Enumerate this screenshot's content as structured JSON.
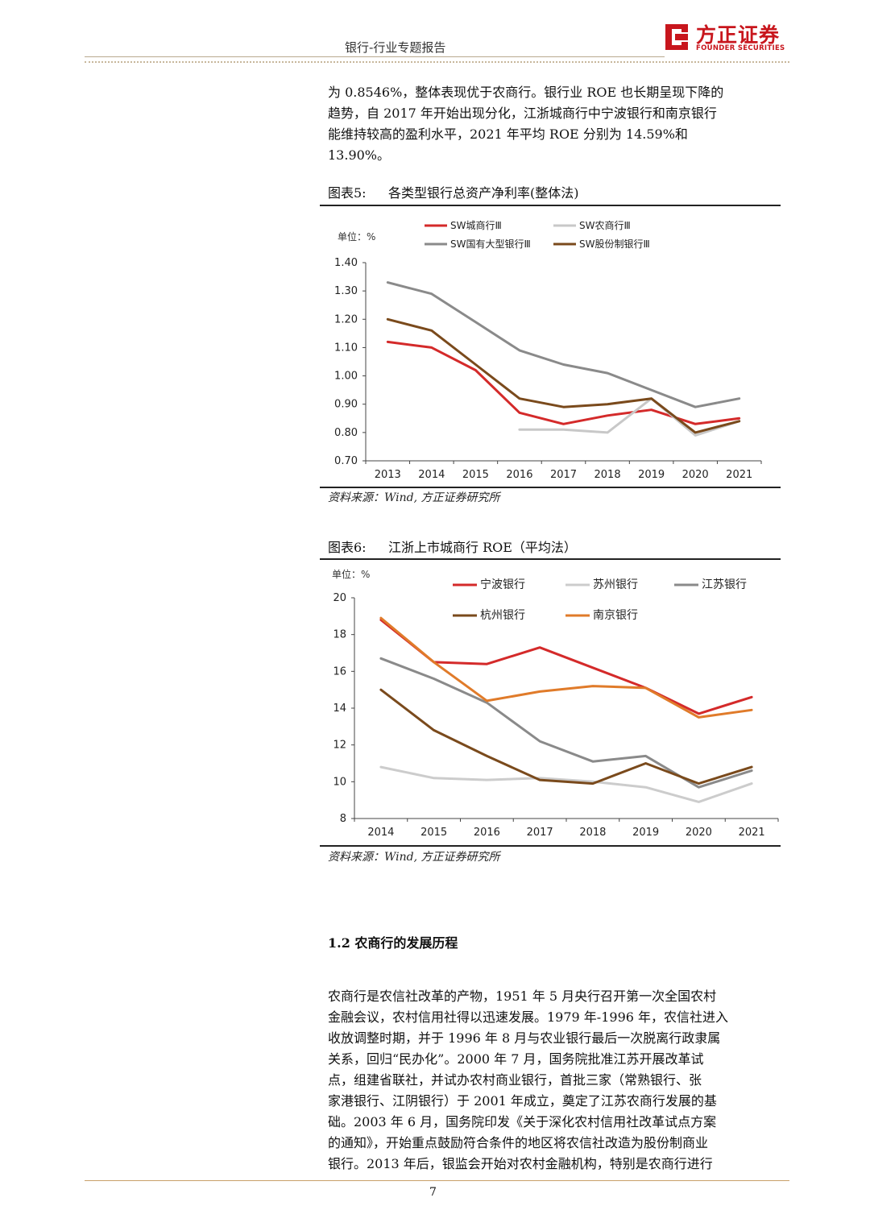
{
  "header": {
    "title": "银行-行业专题报告",
    "logo_text": "方正证券",
    "logo_sub": "FOUNDER SECURITIES",
    "logo_color": "#c8161d"
  },
  "body": {
    "para1": "为 0.8546%，整体表现优于农商行。银行业 ROE 也长期呈现下降的\n趋势，自 2017 年开始出现分化，江浙城商行中宁波银行和南京银行\n能维持较高的盈利水平，2021 年平均 ROE 分别为 14.59%和\n13.90%。",
    "section_title": "1.2 农商行的发展历程",
    "para2": "农商行是农信社改革的产物，1951 年 5 月央行召开第一次全国农村\n金融会议，农村信用社得以迅速发展。1979 年-1996 年，农信社进入\n收放调整时期，并于 1996 年 8 月与农业银行最后一次脱离行政隶属\n关系，回归“民办化”。2000 年 7 月，国务院批准江苏开展改革试\n点，组建省联社，并试办农村商业银行，首批三家（常熟银行、张\n家港银行、江阴银行）于 2001 年成立，奠定了江苏农商行发展的基\n础。2003 年 6 月，国务院印发《关于深化农村信用社改革试点方案\n的通知》，开始重点鼓励符合条件的地区将农信社改造为股份制商业\n银行。2013 年后，银监会开始对农村金融机构，特别是农商行进行"
  },
  "figure5": {
    "label": "图表5:",
    "title": "各类型银行总资产净利率(整体法)",
    "source": "资料来源：Wind, 方正证券研究所"
  },
  "figure6": {
    "label": "图表6:",
    "title": "江浙上市城商行 ROE（平均法）",
    "source": "资料来源：Wind, 方正证券研究所"
  },
  "footer": {
    "page_number": "7"
  },
  "chart_data": [
    {
      "type": "line",
      "unit_label": "单位：%",
      "x": [
        "2013",
        "2014",
        "2015",
        "2016",
        "2017",
        "2018",
        "2019",
        "2020",
        "2021"
      ],
      "ylim": [
        0.7,
        1.4
      ],
      "yticks": [
        "0.70",
        "0.80",
        "0.90",
        "1.00",
        "1.10",
        "1.20",
        "1.30",
        "1.40"
      ],
      "legend_position": "top",
      "series": [
        {
          "name": "SW城商行Ⅲ",
          "color": "#d42a2a",
          "values": [
            1.12,
            1.1,
            1.02,
            0.87,
            0.83,
            0.86,
            0.88,
            0.83,
            0.85
          ]
        },
        {
          "name": "SW农商行Ⅲ",
          "color": "#c8c8c8",
          "values": [
            null,
            null,
            null,
            0.81,
            0.81,
            0.8,
            0.92,
            0.79,
            0.84
          ]
        },
        {
          "name": "SW国有大型银行Ⅲ",
          "color": "#8a8a8a",
          "values": [
            1.33,
            1.29,
            1.19,
            1.09,
            1.04,
            1.01,
            0.95,
            0.89,
            0.92
          ]
        },
        {
          "name": "SW股份制银行Ⅲ",
          "color": "#7a4a1c",
          "values": [
            1.2,
            1.16,
            1.04,
            0.92,
            0.89,
            0.9,
            0.92,
            0.8,
            0.84
          ]
        }
      ]
    },
    {
      "type": "line",
      "unit_label": "单位：%",
      "x": [
        "2014",
        "2015",
        "2016",
        "2017",
        "2018",
        "2019",
        "2020",
        "2021"
      ],
      "ylim": [
        8,
        20
      ],
      "yticks": [
        "8",
        "10",
        "12",
        "14",
        "16",
        "18",
        "20"
      ],
      "legend_position": "top",
      "series": [
        {
          "name": "宁波银行",
          "color": "#d42a2a",
          "values": [
            18.8,
            16.5,
            16.4,
            17.3,
            16.2,
            15.1,
            13.7,
            14.6
          ]
        },
        {
          "name": "苏州银行",
          "color": "#cccccc",
          "values": [
            10.8,
            10.2,
            10.1,
            10.2,
            10.0,
            9.7,
            8.9,
            9.9
          ]
        },
        {
          "name": "江苏银行",
          "color": "#8a8a8a",
          "values": [
            16.7,
            15.6,
            14.3,
            12.2,
            11.1,
            11.4,
            9.7,
            10.6
          ]
        },
        {
          "name": "杭州银行",
          "color": "#7a4a1c",
          "values": [
            15.0,
            12.8,
            11.4,
            10.1,
            9.9,
            11.0,
            9.9,
            10.8
          ]
        },
        {
          "name": "南京银行",
          "color": "#e07b2a",
          "values": [
            18.9,
            16.5,
            14.4,
            14.9,
            15.2,
            15.1,
            13.5,
            13.9
          ]
        }
      ]
    }
  ]
}
